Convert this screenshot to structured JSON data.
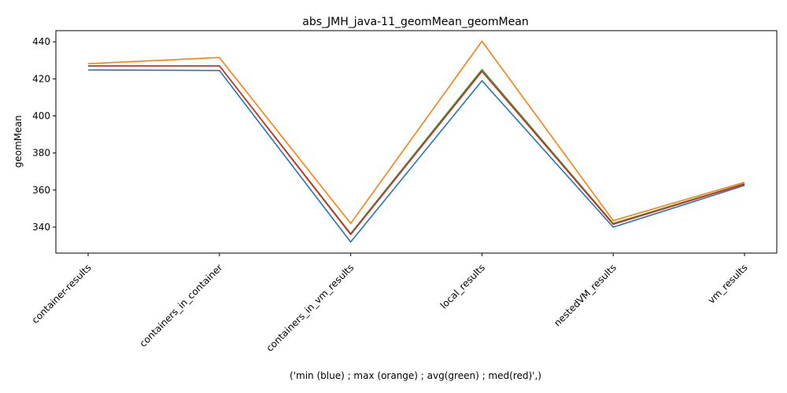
{
  "chart_data": {
    "type": "line",
    "title": "abs_JMH_java-11_geomMean_geomMean",
    "xlabel": "('min (blue) ; max (orange) ; avg(green) ; med(red)',)",
    "ylabel": "geomMean",
    "categories": [
      "container-results",
      "containers_in_container",
      "containers_in_vm_results",
      "local_results",
      "nestedVM_results",
      "vm_results"
    ],
    "ylim": [
      326,
      446
    ],
    "yticks": [
      340,
      360,
      380,
      400,
      420,
      440
    ],
    "grid": false,
    "series": [
      {
        "color": "#1f77b4",
        "values": [
          424.8,
          424.5,
          332.0,
          419.0,
          340.0,
          362.5
        ]
      },
      {
        "color": "#ff7f0e",
        "values": [
          428.2,
          431.5,
          342.0,
          440.3,
          343.5,
          364.2
        ]
      },
      {
        "color": "#2ca02c",
        "values": [
          427.0,
          427.0,
          336.5,
          425.0,
          342.0,
          363.5
        ]
      },
      {
        "color": "#d62728",
        "values": [
          427.0,
          427.0,
          336.0,
          424.0,
          341.5,
          363.2
        ]
      }
    ]
  }
}
